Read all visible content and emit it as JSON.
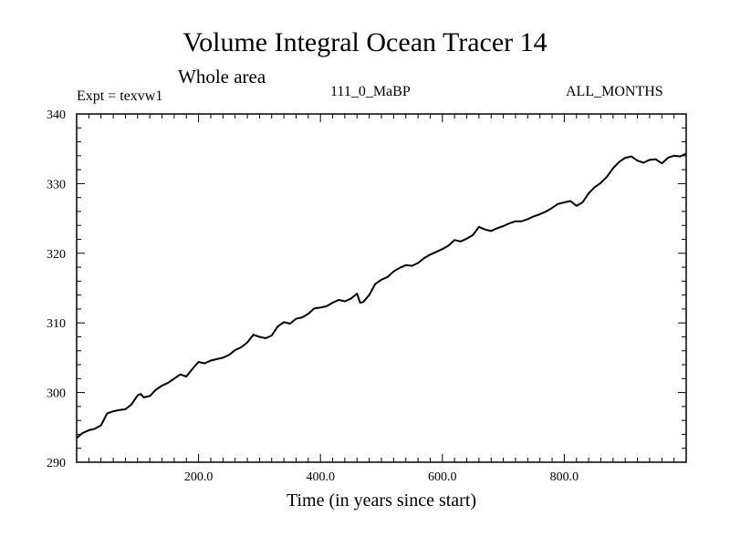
{
  "chart_data": {
    "type": "line",
    "title": "Volume Integral Ocean Tracer 14",
    "subtitle": "Whole area",
    "annotations": {
      "experiment": "Expt = texvw1",
      "case": "111_0_MaBP",
      "season": "ALL_MONTHS"
    },
    "xlabel": "Time (in years since start)",
    "ylabel": "",
    "xlim": [
      0,
      1000
    ],
    "ylim": [
      290,
      340
    ],
    "x_ticks": [
      200,
      400,
      600,
      800
    ],
    "x_tick_labels": [
      "200.0",
      "400.0",
      "600.0",
      "800.0"
    ],
    "y_ticks": [
      290,
      300,
      310,
      320,
      330,
      340
    ],
    "y_tick_labels": [
      "290",
      "300",
      "310",
      "320",
      "330",
      "340"
    ],
    "grid": false,
    "series": [
      {
        "name": "Volume Integral Ocean Tracer 14",
        "color": "#000000",
        "x": [
          0,
          10,
          20,
          30,
          40,
          50,
          60,
          70,
          80,
          90,
          100,
          105,
          110,
          120,
          130,
          140,
          150,
          160,
          170,
          180,
          190,
          200,
          210,
          220,
          230,
          240,
          250,
          260,
          270,
          280,
          290,
          300,
          310,
          320,
          330,
          340,
          350,
          360,
          370,
          380,
          390,
          400,
          410,
          420,
          430,
          440,
          450,
          460,
          465,
          470,
          480,
          490,
          500,
          510,
          520,
          530,
          540,
          550,
          560,
          570,
          580,
          590,
          600,
          610,
          620,
          630,
          640,
          650,
          660,
          670,
          680,
          690,
          700,
          710,
          720,
          730,
          740,
          750,
          760,
          770,
          780,
          790,
          800,
          810,
          820,
          830,
          840,
          850,
          860,
          870,
          880,
          890,
          900,
          910,
          920,
          930,
          940,
          950,
          960,
          970,
          980,
          990,
          1000
        ],
        "values": [
          293.5,
          294.2,
          294.6,
          294.8,
          295.3,
          297.0,
          297.3,
          297.5,
          297.6,
          298.3,
          299.6,
          299.8,
          299.3,
          299.5,
          300.4,
          301.0,
          301.4,
          302.0,
          302.6,
          302.3,
          303.4,
          304.4,
          304.2,
          304.6,
          304.8,
          305.0,
          305.4,
          306.1,
          306.5,
          307.2,
          308.3,
          308.0,
          307.8,
          308.2,
          309.5,
          310.1,
          309.9,
          310.6,
          310.8,
          311.3,
          312.1,
          312.2,
          312.4,
          312.9,
          313.3,
          313.1,
          313.5,
          314.2,
          312.9,
          313.0,
          314.0,
          315.6,
          316.2,
          316.6,
          317.4,
          317.9,
          318.3,
          318.2,
          318.6,
          319.3,
          319.8,
          320.2,
          320.6,
          321.1,
          321.9,
          321.7,
          322.1,
          322.6,
          323.8,
          323.4,
          323.2,
          323.6,
          323.9,
          324.3,
          324.6,
          324.6,
          324.9,
          325.3,
          325.6,
          326.0,
          326.5,
          327.1,
          327.3,
          327.5,
          326.8,
          327.3,
          328.6,
          329.5,
          330.1,
          331.0,
          332.2,
          333.1,
          333.7,
          333.9,
          333.3,
          333.0,
          333.4,
          333.5,
          332.9,
          333.7,
          334.0,
          333.9,
          334.3
        ]
      }
    ]
  }
}
